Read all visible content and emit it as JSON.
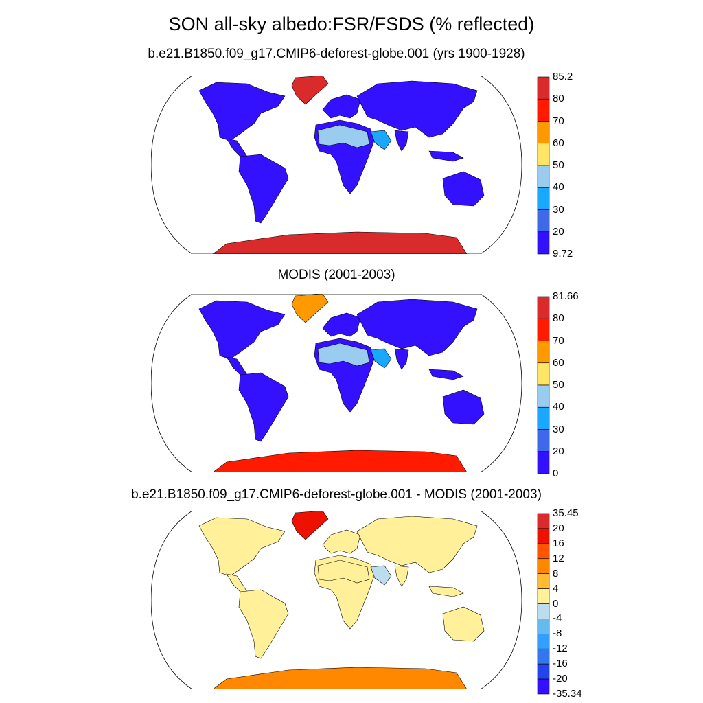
{
  "main_title": "SON all-sky albedo:FSR/FSDS (% reflected)",
  "panels": [
    {
      "title": "b.e21.B1850.f09_g17.CMIP6-deforest-globe.001 (yrs 1900-1928)",
      "colorbar": {
        "labels": [
          "85.2",
          "80",
          "70",
          "60",
          "50",
          "40",
          "30",
          "20",
          "9.72"
        ],
        "colors": [
          "#d92b2b",
          "#ff1a00",
          "#ff9900",
          "#ffe566",
          "#99ccee",
          "#1aa8ff",
          "#3f69e8",
          "#3311ff"
        ]
      },
      "map_colors": {
        "land": "#3311ff",
        "desert": "#99ccee",
        "arid": "#1aa8ff",
        "ice": "#d92b2b",
        "greenland": "#d92b2b"
      }
    },
    {
      "title": "MODIS (2001-2003)",
      "colorbar": {
        "labels": [
          "81.66",
          "80",
          "70",
          "60",
          "50",
          "40",
          "30",
          "20",
          "0"
        ],
        "colors": [
          "#d92b2b",
          "#ff1a00",
          "#ff9900",
          "#ffe566",
          "#99ccee",
          "#1aa8ff",
          "#3f69e8",
          "#3311ff"
        ]
      },
      "map_colors": {
        "land": "#3311ff",
        "desert": "#99ccee",
        "arid": "#1aa8ff",
        "ice": "#ff1a00",
        "greenland": "#ff9900"
      }
    },
    {
      "title": "b.e21.B1850.f09_g17.CMIP6-deforest-globe.001 - MODIS (2001-2003)",
      "colorbar": {
        "labels": [
          "35.45",
          "20",
          "16",
          "12",
          "8",
          "4",
          "0",
          "-4",
          "-8",
          "-12",
          "-16",
          "-20",
          "-35.34"
        ],
        "colors": [
          "#d92b2b",
          "#ee1100",
          "#ff5500",
          "#ff8800",
          "#ffbb33",
          "#fff099",
          "#bbddee",
          "#66bbee",
          "#33a0ff",
          "#3377ee",
          "#2244ee",
          "#3311ff"
        ]
      },
      "map_colors": {
        "land": "#fff099",
        "desert": "#fff099",
        "arid": "#bbddee",
        "ice": "#ff8800",
        "greenland": "#ee1100"
      }
    }
  ]
}
